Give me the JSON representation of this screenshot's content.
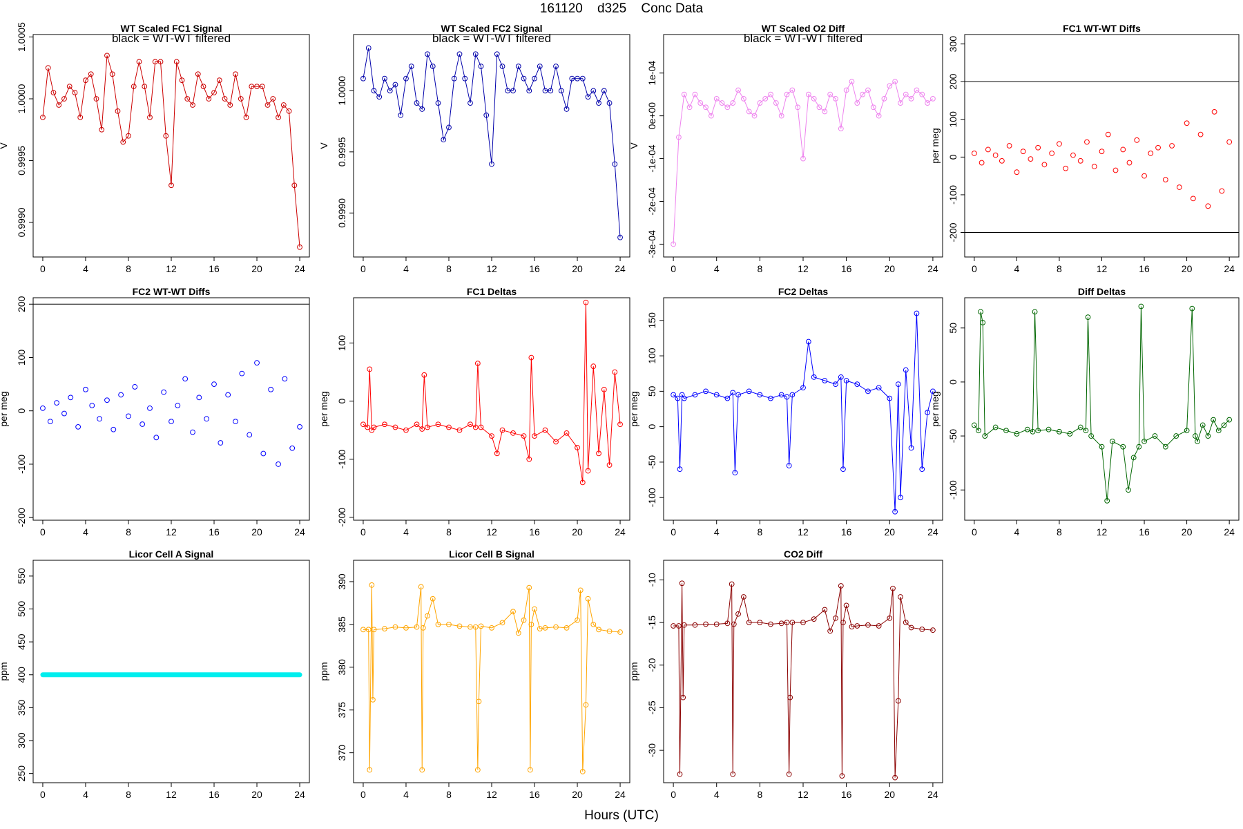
{
  "figure": {
    "title": "161120    d325    Conc Data",
    "xlabel": "Hours (UTC)"
  },
  "chart_data": [
    {
      "id": "p1",
      "type": "line",
      "title": "WT Scaled FC1 Signal",
      "annotation": "black = WT-WT filtered",
      "ylabel": "V",
      "color": "#cc0000",
      "xlim": [
        -0.9,
        24.9
      ],
      "ylim": [
        0.99872,
        1.00052
      ],
      "xticks": [
        "0",
        "4",
        "8",
        "12",
        "16",
        "20",
        "24"
      ],
      "yticks": [
        "0.9990",
        "0.9995",
        "1.0000",
        "1.0005"
      ],
      "x": [
        0,
        0.5,
        1,
        1.5,
        2,
        2.5,
        3,
        3.5,
        4,
        4.5,
        5,
        5.5,
        6,
        6.5,
        7,
        7.5,
        8,
        8.5,
        9,
        9.5,
        10,
        10.5,
        11,
        11.5,
        12,
        12.5,
        13,
        13.5,
        14,
        14.5,
        15,
        15.5,
        16,
        16.5,
        17,
        17.5,
        18,
        18.5,
        19,
        19.5,
        20,
        20.5,
        21,
        21.5,
        22,
        22.5,
        23,
        23.5,
        24
      ],
      "y": [
        0.99985,
        1.00025,
        1.00005,
        0.99995,
        1.0,
        1.0001,
        1.00005,
        0.99985,
        1.00015,
        1.0002,
        1.0,
        0.99975,
        1.00035,
        1.0002,
        0.9999,
        0.99965,
        0.9997,
        1.0001,
        1.0003,
        1.0001,
        0.99985,
        1.0003,
        1.0003,
        0.9997,
        0.9993,
        1.0003,
        1.00015,
        1.0,
        0.99995,
        1.0002,
        1.0001,
        1.0,
        1.00005,
        1.00015,
        1.0,
        0.99995,
        1.0002,
        1.0,
        0.99985,
        1.0001,
        1.0001,
        1.0001,
        0.99995,
        1.0,
        0.99985,
        0.99995,
        0.9999,
        0.9993,
        0.9988
      ]
    },
    {
      "id": "p2",
      "type": "line",
      "title": "WT Scaled FC2 Signal",
      "annotation": "black = WT-WT filtered",
      "ylabel": "V",
      "color": "#0000aa",
      "xlim": [
        -0.9,
        24.9
      ],
      "ylim": [
        0.99864,
        1.00046
      ],
      "xticks": [
        "0",
        "4",
        "8",
        "12",
        "16",
        "20",
        "24"
      ],
      "yticks": [
        "0.9990",
        "0.9995",
        "1.0000"
      ],
      "x": [
        0,
        0.5,
        1,
        1.5,
        2,
        2.5,
        3,
        3.5,
        4,
        4.5,
        5,
        5.5,
        6,
        6.5,
        7,
        7.5,
        8,
        8.5,
        9,
        9.5,
        10,
        10.5,
        11,
        11.5,
        12,
        12.5,
        13,
        13.5,
        14,
        14.5,
        15,
        15.5,
        16,
        16.5,
        17,
        17.5,
        18,
        18.5,
        19,
        19.5,
        20,
        20.5,
        21,
        21.5,
        22,
        22.5,
        23,
        23.5,
        24
      ],
      "y": [
        1.0001,
        1.00035,
        1.0,
        0.99995,
        1.0001,
        1.0,
        1.00005,
        0.9998,
        1.0001,
        1.0002,
        0.9999,
        0.99985,
        1.0003,
        1.0002,
        0.9999,
        0.9996,
        0.9997,
        1.0001,
        1.0003,
        1.0001,
        0.9999,
        1.0003,
        1.0002,
        0.9998,
        0.9994,
        1.0003,
        1.0002,
        1.0,
        1.0,
        1.0002,
        1.0001,
        1.0,
        1.0001,
        1.0002,
        1.0,
        1.0,
        1.0002,
        1.0,
        0.99985,
        1.0001,
        1.0001,
        1.0001,
        0.99995,
        1.0,
        0.9999,
        1.0,
        0.9999,
        0.9994,
        0.9988
      ]
    },
    {
      "id": "p3",
      "type": "line",
      "title": "WT Scaled O2 Diff",
      "annotation": "black = WT-WT filtered",
      "ylabel": "V",
      "color": "#ee82ee",
      "xlim": [
        -0.9,
        24.9
      ],
      "ylim": [
        -0.00033,
        0.00019
      ],
      "xticks": [
        "0",
        "4",
        "8",
        "12",
        "16",
        "20",
        "24"
      ],
      "yticks": [
        "-3e-04",
        "-2e-04",
        "-1e-04",
        "0e+00",
        "1e-04"
      ],
      "x": [
        0,
        0.5,
        1,
        1.5,
        2,
        2.5,
        3,
        3.5,
        4,
        4.5,
        5,
        5.5,
        6,
        6.5,
        7,
        7.5,
        8,
        8.5,
        9,
        9.5,
        10,
        10.5,
        11,
        11.5,
        12,
        12.5,
        13,
        13.5,
        14,
        14.5,
        15,
        15.5,
        16,
        16.5,
        17,
        17.5,
        18,
        18.5,
        19,
        19.5,
        20,
        20.5,
        21,
        21.5,
        22,
        22.5,
        23,
        23.5,
        24
      ],
      "y": [
        -0.0003,
        -5e-05,
        5e-05,
        2e-05,
        5e-05,
        3e-05,
        2e-05,
        0.0,
        4e-05,
        3e-05,
        2e-05,
        3e-05,
        6e-05,
        4e-05,
        1e-05,
        0.0,
        3e-05,
        4e-05,
        5e-05,
        3e-05,
        0.0,
        5e-05,
        6e-05,
        2e-05,
        -0.0001,
        5e-05,
        4e-05,
        2e-05,
        1e-05,
        5e-05,
        4e-05,
        -3e-05,
        6e-05,
        8e-05,
        3e-05,
        5e-05,
        6e-05,
        2e-05,
        0.0,
        4e-05,
        7e-05,
        8e-05,
        3e-05,
        5e-05,
        4e-05,
        6e-05,
        5e-05,
        3e-05,
        4e-05
      ]
    },
    {
      "id": "p4",
      "type": "scatter",
      "title": "FC1 WT-WT Diffs",
      "ylabel": "per meg",
      "color": "#ff0000",
      "xlim": [
        -0.9,
        24.9
      ],
      "ylim": [
        -265,
        325
      ],
      "hlines": [
        200,
        -200
      ],
      "xticks": [
        "0",
        "4",
        "8",
        "12",
        "16",
        "20",
        "24"
      ],
      "yticks": [
        "-200",
        "-100",
        "0",
        "100",
        "200",
        "300"
      ],
      "x": [
        0,
        0.7,
        1.3,
        2,
        2.6,
        3.3,
        4,
        4.6,
        5.3,
        6,
        6.6,
        7.3,
        8,
        8.6,
        9.3,
        10,
        10.6,
        11.3,
        12,
        12.6,
        13.3,
        14,
        14.6,
        15.3,
        16,
        16.6,
        17.3,
        18,
        18.6,
        19.3,
        20,
        20.6,
        21.3,
        22,
        22.6,
        23.3,
        24
      ],
      "y": [
        10,
        -15,
        20,
        5,
        -10,
        30,
        -40,
        15,
        -5,
        25,
        -20,
        10,
        35,
        -30,
        5,
        -10,
        40,
        -25,
        15,
        60,
        -35,
        20,
        -15,
        45,
        -50,
        10,
        25,
        -60,
        30,
        -80,
        90,
        -110,
        60,
        -130,
        120,
        -90,
        40
      ]
    },
    {
      "id": "p5",
      "type": "scatter",
      "title": "FC2 WT-WT Diffs",
      "ylabel": "per meg",
      "color": "#0000ff",
      "xlim": [
        -0.9,
        24.9
      ],
      "ylim": [
        -205,
        212
      ],
      "hlines": [
        200
      ],
      "xticks": [
        "0",
        "4",
        "8",
        "12",
        "16",
        "20",
        "24"
      ],
      "yticks": [
        "-200",
        "-100",
        "0",
        "100",
        "200"
      ],
      "x": [
        0,
        0.7,
        1.3,
        2,
        2.6,
        3.3,
        4,
        4.6,
        5.3,
        6,
        6.6,
        7.3,
        8,
        8.6,
        9.3,
        10,
        10.6,
        11.3,
        12,
        12.6,
        13.3,
        14,
        14.6,
        15.3,
        16,
        16.6,
        17.3,
        18,
        18.6,
        19.3,
        20,
        20.6,
        21.3,
        22,
        22.6,
        23.3,
        24
      ],
      "y": [
        5,
        -20,
        15,
        -5,
        25,
        -30,
        40,
        10,
        -15,
        20,
        -35,
        30,
        -10,
        45,
        -25,
        5,
        -50,
        35,
        -20,
        10,
        60,
        -40,
        25,
        -15,
        50,
        -60,
        30,
        -20,
        70,
        -45,
        90,
        -80,
        40,
        -100,
        60,
        -70,
        -30
      ]
    },
    {
      "id": "p6",
      "type": "line",
      "title": "FC1 Deltas",
      "ylabel": "per meg",
      "color": "#ff0000",
      "xlim": [
        -0.9,
        24.9
      ],
      "ylim": [
        -205,
        178
      ],
      "xticks": [
        "0",
        "4",
        "8",
        "12",
        "16",
        "20",
        "24"
      ],
      "yticks": [
        "-200",
        "-100",
        "0",
        "100"
      ],
      "x": [
        0,
        0.4,
        0.6,
        0.8,
        1,
        2,
        3,
        4,
        5,
        5.5,
        5.7,
        6,
        7,
        8,
        9,
        10,
        10.5,
        10.7,
        11,
        12,
        12.5,
        13,
        14,
        15,
        15.5,
        15.7,
        16,
        17,
        18,
        19,
        20,
        20.5,
        20.8,
        21,
        21.5,
        22,
        22.5,
        23,
        23.5,
        24
      ],
      "y": [
        -40,
        -45,
        55,
        -50,
        -45,
        -40,
        -45,
        -50,
        -40,
        -48,
        45,
        -45,
        -40,
        -45,
        -50,
        -40,
        -45,
        65,
        -45,
        -60,
        -90,
        -50,
        -55,
        -60,
        -100,
        75,
        -60,
        -50,
        -70,
        -55,
        -80,
        -140,
        170,
        -120,
        60,
        -90,
        20,
        -110,
        50,
        -40
      ]
    },
    {
      "id": "p7",
      "type": "line",
      "title": "FC2 Deltas",
      "ylabel": "per meg",
      "color": "#0000ff",
      "xlim": [
        -0.9,
        24.9
      ],
      "ylim": [
        -132,
        182
      ],
      "xticks": [
        "0",
        "4",
        "8",
        "12",
        "16",
        "20",
        "24"
      ],
      "yticks": [
        "-100",
        "-50",
        "0",
        "50",
        "100",
        "150"
      ],
      "x": [
        0,
        0.4,
        0.6,
        0.8,
        1,
        2,
        3,
        4,
        5,
        5.5,
        5.7,
        6,
        7,
        8,
        9,
        10,
        10.5,
        10.7,
        11,
        12,
        12.5,
        13,
        14,
        15,
        15.5,
        15.7,
        16,
        17,
        18,
        19,
        20,
        20.5,
        20.8,
        21,
        21.5,
        22,
        22.5,
        23,
        23.5,
        24
      ],
      "y": [
        45,
        40,
        -60,
        45,
        40,
        45,
        50,
        45,
        40,
        48,
        -65,
        45,
        50,
        45,
        40,
        45,
        42,
        -55,
        45,
        55,
        120,
        70,
        65,
        60,
        70,
        -60,
        65,
        60,
        50,
        55,
        40,
        -120,
        60,
        -100,
        80,
        -30,
        160,
        -60,
        20,
        50
      ]
    },
    {
      "id": "p8",
      "type": "line",
      "title": "Diff Deltas",
      "ylabel": "per meg",
      "color": "#006600",
      "xlim": [
        -0.9,
        24.9
      ],
      "ylim": [
        -128,
        78
      ],
      "xticks": [
        "0",
        "4",
        "8",
        "12",
        "16",
        "20",
        "24"
      ],
      "yticks": [
        "-100",
        "-50",
        "0",
        "50"
      ],
      "x": [
        0,
        0.4,
        0.6,
        0.8,
        1,
        2,
        3,
        4,
        5,
        5.5,
        5.7,
        6,
        7,
        8,
        9,
        10,
        10.5,
        10.7,
        11,
        12,
        12.5,
        13,
        14,
        14.5,
        15,
        15.5,
        15.7,
        16,
        17,
        18,
        19,
        20,
        20.5,
        20.8,
        21,
        21.5,
        22,
        22.5,
        23,
        23.5,
        24
      ],
      "y": [
        -40,
        -45,
        65,
        55,
        -50,
        -42,
        -45,
        -48,
        -44,
        -46,
        65,
        -45,
        -44,
        -46,
        -48,
        -42,
        -45,
        60,
        -50,
        -60,
        -110,
        -55,
        -60,
        -100,
        -70,
        -60,
        70,
        -55,
        -50,
        -60,
        -50,
        -45,
        68,
        -50,
        -55,
        -40,
        -50,
        -35,
        -45,
        -40,
        -35
      ]
    },
    {
      "id": "p9",
      "type": "flat",
      "title": "Licor Cell A Signal",
      "ylabel": "ppm",
      "color": "#00eeee",
      "xlim": [
        -0.9,
        24.9
      ],
      "ylim": [
        236,
        574
      ],
      "level": 400,
      "xticks": [
        "0",
        "4",
        "8",
        "12",
        "16",
        "20",
        "24"
      ],
      "yticks": [
        "250",
        "300",
        "350",
        "400",
        "450",
        "500",
        "550"
      ],
      "x": [
        0,
        24
      ],
      "y": [
        400,
        400
      ]
    },
    {
      "id": "p10",
      "type": "line",
      "title": "Licor Cell B Signal",
      "ylabel": "ppm",
      "color": "#ffa500",
      "xlim": [
        -0.9,
        24.9
      ],
      "ylim": [
        366.5,
        392.5
      ],
      "xticks": [
        "0",
        "4",
        "8",
        "12",
        "16",
        "20",
        "24"
      ],
      "yticks": [
        "370",
        "375",
        "380",
        "385",
        "390"
      ],
      "x": [
        0,
        0.5,
        0.6,
        0.8,
        0.9,
        1,
        2,
        3,
        4,
        5,
        5.4,
        5.5,
        5.6,
        6,
        6.5,
        7,
        8,
        9,
        10,
        10.5,
        10.7,
        10.8,
        11,
        12,
        13,
        14,
        14.5,
        15,
        15.5,
        15.6,
        15.7,
        16,
        16.5,
        17,
        18,
        19,
        20,
        20.3,
        20.5,
        20.8,
        21,
        21.5,
        22,
        23,
        24
      ],
      "y": [
        384.4,
        384.4,
        368,
        389.6,
        376.2,
        384.4,
        384.5,
        384.7,
        384.6,
        384.7,
        389.4,
        368,
        384.6,
        386,
        388,
        385,
        385,
        384.8,
        384.7,
        384.7,
        368,
        376,
        384.8,
        384.6,
        385.2,
        386.5,
        384,
        385.5,
        389.3,
        368,
        385,
        386.8,
        384.5,
        384.6,
        384.7,
        384.6,
        385.5,
        389,
        367.8,
        375.6,
        388,
        385,
        384.4,
        384.2,
        384.1
      ]
    },
    {
      "id": "p11",
      "type": "line",
      "title": "CO2 Diff",
      "ylabel": "ppm",
      "color": "#8b0000",
      "xlim": [
        -0.9,
        24.9
      ],
      "ylim": [
        -33.8,
        -7.7
      ],
      "xticks": [
        "0",
        "4",
        "8",
        "12",
        "16",
        "20",
        "24"
      ],
      "yticks": [
        "-30",
        "-25",
        "-20",
        "-15",
        "-10"
      ],
      "x": [
        0,
        0.5,
        0.6,
        0.8,
        0.9,
        1,
        2,
        3,
        4,
        5,
        5.4,
        5.5,
        5.6,
        6,
        6.5,
        7,
        8,
        9,
        10,
        10.5,
        10.7,
        10.8,
        11,
        12,
        13,
        14,
        14.5,
        15,
        15.5,
        15.6,
        15.7,
        16,
        16.5,
        17,
        18,
        19,
        20,
        20.3,
        20.5,
        20.8,
        21,
        21.5,
        22,
        23,
        24
      ],
      "y": [
        -15.4,
        -15.4,
        -32.8,
        -10.4,
        -23.8,
        -15.3,
        -15.3,
        -15.2,
        -15.2,
        -15.1,
        -10.5,
        -32.8,
        -15.2,
        -14,
        -12,
        -15,
        -15,
        -15.2,
        -15.1,
        -15,
        -32.8,
        -23.8,
        -15,
        -15,
        -14.6,
        -13.5,
        -16,
        -14.5,
        -10.7,
        -33,
        -15,
        -13,
        -15.5,
        -15.4,
        -15.3,
        -15.4,
        -14.5,
        -11,
        -33.2,
        -24.2,
        -12,
        -15,
        -15.6,
        -15.8,
        -15.9
      ]
    }
  ]
}
